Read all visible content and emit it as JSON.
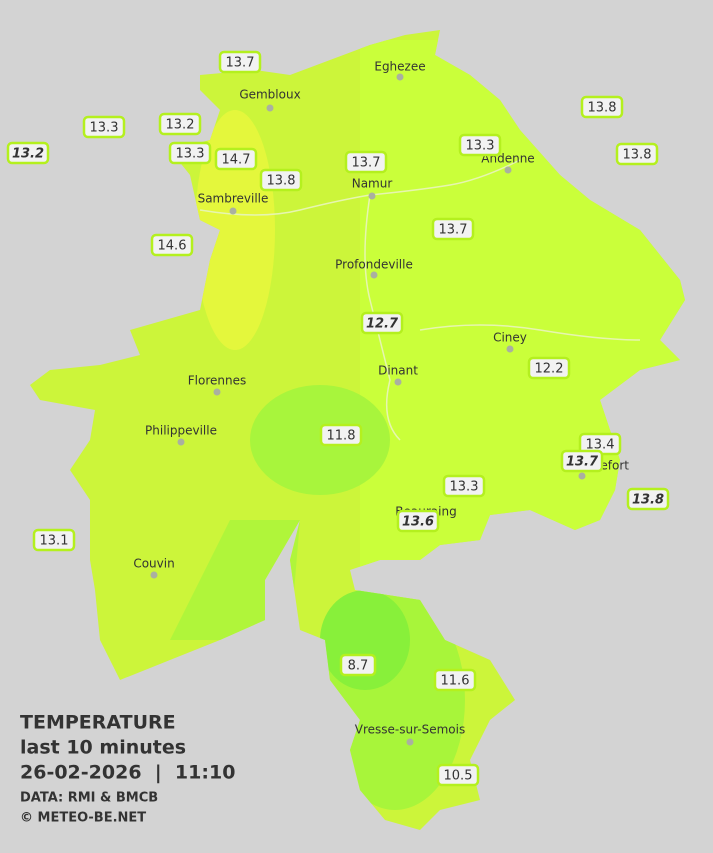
{
  "map": {
    "legend": {
      "title": "TEMPERATURE",
      "period": "last 10 minutes",
      "datetime": "26-02-2026  |  11:10",
      "source": "DATA: RMI & BMCB",
      "credit": "© METEO-BE.NET"
    },
    "cities": [
      "Eghezee",
      "Gembloux",
      "Andenne",
      "Namur",
      "Sambreville",
      "Profondeville",
      "Ciney",
      "Dinant",
      "Florennes",
      "Philippeville",
      "Couvin",
      "Vresse-sur-Semois",
      "Rochefort",
      "Beauraing"
    ],
    "stations": [
      {
        "label": "13.7",
        "italic": false
      },
      {
        "label": "13.3",
        "italic": false
      },
      {
        "label": "13.2",
        "italic": true
      },
      {
        "label": "13.2",
        "italic": false
      },
      {
        "label": "13.3",
        "italic": false
      },
      {
        "label": "14.7",
        "italic": false
      },
      {
        "label": "13.8",
        "italic": false
      },
      {
        "label": "13.7",
        "italic": false
      },
      {
        "label": "13.3",
        "italic": false
      },
      {
        "label": "13.8",
        "italic": false
      },
      {
        "label": "13.8",
        "italic": false
      },
      {
        "label": "13.7",
        "italic": false
      },
      {
        "label": "14.6",
        "italic": false
      },
      {
        "label": "12.7",
        "italic": true
      },
      {
        "label": "12.2",
        "italic": false
      },
      {
        "label": "11.8",
        "italic": false
      },
      {
        "label": "13.4",
        "italic": false
      },
      {
        "label": "13.7",
        "italic": true
      },
      {
        "label": "13.3",
        "italic": false
      },
      {
        "label": "13.6",
        "italic": true
      },
      {
        "label": "13.8",
        "italic": true
      },
      {
        "label": "13.1",
        "italic": false
      },
      {
        "label": "8.7",
        "italic": false
      },
      {
        "label": "11.6",
        "italic": false
      },
      {
        "label": "10.5",
        "italic": false
      }
    ]
  }
}
